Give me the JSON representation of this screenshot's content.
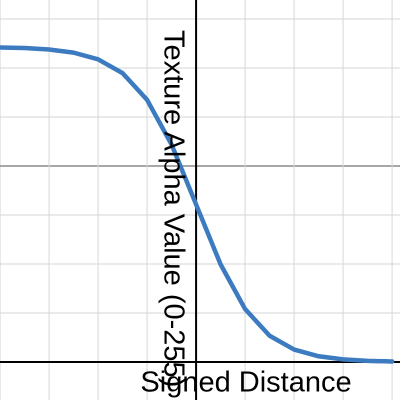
{
  "chart_data": {
    "type": "line",
    "x_label": "Signed Distance",
    "y_label": "Texture Alpha Value (0-255)",
    "x": [
      -4,
      -3.5,
      -3,
      -2.5,
      -2,
      -1.5,
      -1,
      -0.5,
      0,
      0.5,
      1,
      1.5,
      2,
      2.5,
      3,
      3.5,
      4
    ],
    "series": [
      {
        "color": "#3c7bc0",
        "values": [
          254.6,
          254.1,
          252.9,
          250.4,
          245.0,
          233.8,
          212.2,
          176.0,
          127.5,
          79.0,
          42.8,
          21.2,
          10.0,
          4.6,
          2.1,
          0.9,
          0.4
        ]
      }
    ],
    "xlim": [
      -4,
      4.16
    ],
    "ylim": [
      -30.8,
      293
    ]
  }
}
